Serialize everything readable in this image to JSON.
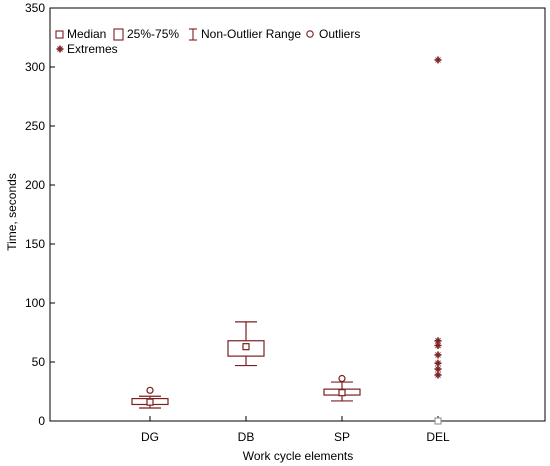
{
  "chart_data": {
    "type": "boxplot",
    "categories": [
      "DG",
      "DB",
      "SP",
      "DEL"
    ],
    "xlabel": "Work cycle elements",
    "ylabel": "Time, seconds",
    "ylim": [
      0,
      350
    ],
    "yticks": [
      0,
      50,
      100,
      150,
      200,
      250,
      300,
      350
    ],
    "grid": false,
    "legend_position": "top-left",
    "legend": {
      "median": "Median",
      "box": "25%-75%",
      "whisker": "Non-Outlier Range",
      "outliers": "Outliers",
      "extremes": "Extremes"
    },
    "colors": {
      "mark": "#7a2020",
      "axis": "#000000"
    },
    "boxes": [
      {
        "category": "DG",
        "median": 16,
        "q1": 14,
        "q3": 19,
        "whisker_low": 11,
        "whisker_high": 21,
        "outliers": [
          26
        ],
        "extremes": []
      },
      {
        "category": "DB",
        "median": 63,
        "q1": 55,
        "q3": 68,
        "whisker_low": 47,
        "whisker_high": 84,
        "outliers": [],
        "extremes": []
      },
      {
        "category": "SP",
        "median": 24,
        "q1": 22,
        "q3": 27,
        "whisker_low": 17,
        "whisker_high": 33,
        "outliers": [
          36
        ],
        "extremes": []
      },
      {
        "category": "DEL",
        "median": 0,
        "q1": 0,
        "q3": 0,
        "whisker_low": 0,
        "whisker_high": 0,
        "outliers": [],
        "extremes": [
          39,
          44,
          49,
          56,
          64,
          68,
          306
        ]
      }
    ]
  }
}
